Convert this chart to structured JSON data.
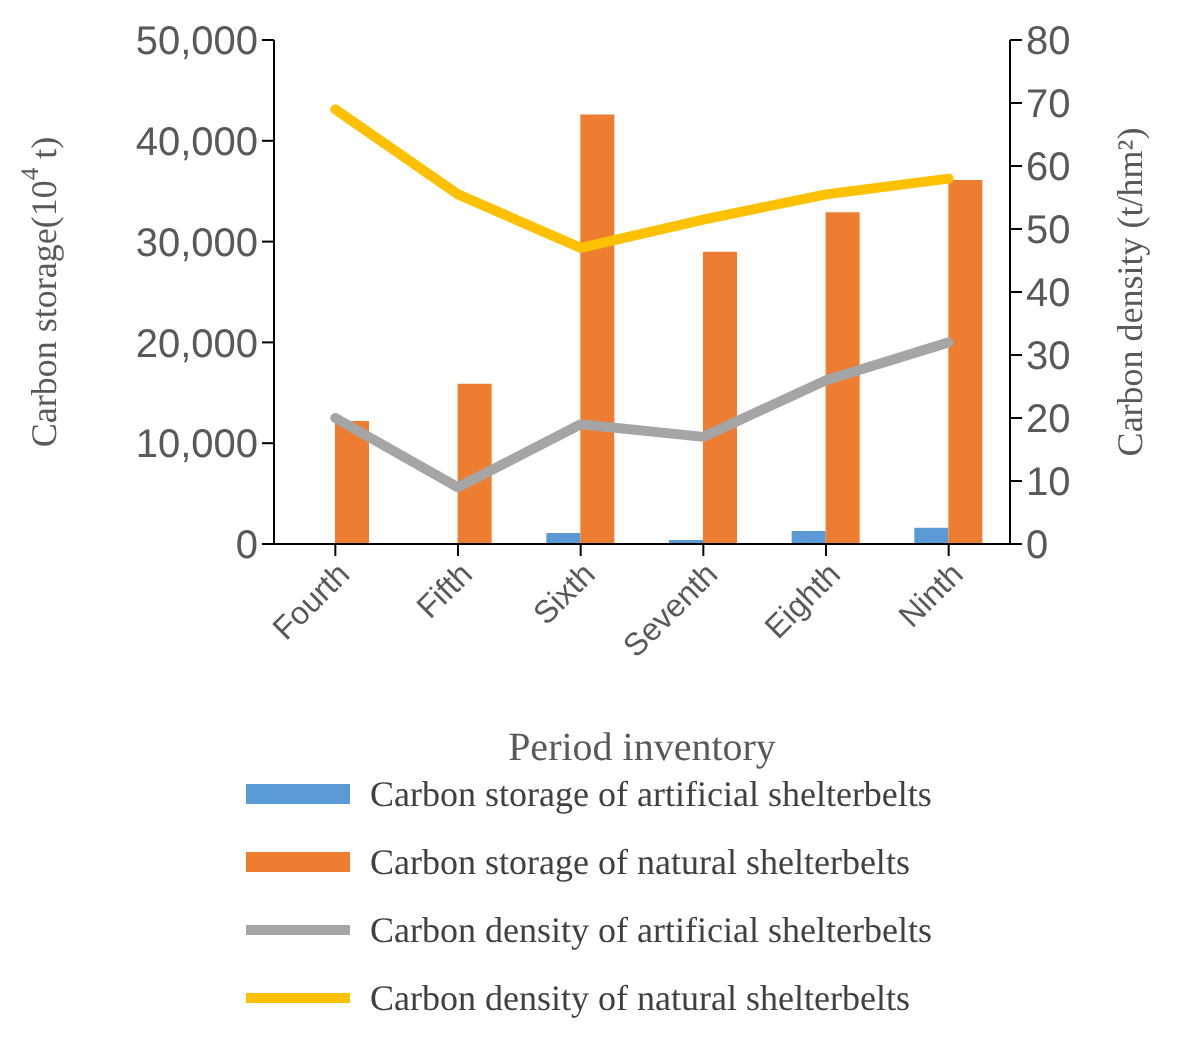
{
  "chart_data": {
    "type": "bar",
    "categories": [
      "Fourth",
      "Fifth",
      "Sixth",
      "Seventh",
      "Eighth",
      "Ninth"
    ],
    "xlabel": "Period inventory",
    "ylabel": "Carbon storage(10$^{4}$ t)",
    "y2label": "Carbon density (t/hm²)",
    "ylim": [
      0,
      50000
    ],
    "yticks": [
      {
        "value": 0,
        "label": "0"
      },
      {
        "value": 10000,
        "label": "10,000"
      },
      {
        "value": 20000,
        "label": "20,000"
      },
      {
        "value": 30000,
        "label": "30,000"
      },
      {
        "value": 40000,
        "label": "40,000"
      },
      {
        "value": 50000,
        "label": "50,000"
      }
    ],
    "y2lim": [
      0,
      80
    ],
    "y2ticks": [
      0,
      10,
      20,
      30,
      40,
      50,
      60,
      70,
      80
    ],
    "series": [
      {
        "name": "Carbon storage of artificial shelterbelts",
        "color": "#5b9bd5",
        "values": [
          0,
          null,
          1100,
          400,
          1300,
          1600
        ]
      },
      {
        "name": "Carbon storage of natural shelterbelts",
        "color": "#ed7d31",
        "values": [
          12200,
          15900,
          42600,
          29000,
          32900,
          36100
        ]
      },
      {
        "name": "Carbon density of artificial shelterbelts",
        "type": "line",
        "axis": "y2",
        "color": "#a5a5a5",
        "values": [
          20,
          9,
          19,
          17,
          26,
          32
        ]
      },
      {
        "name": "Carbon density of natural shelterbelts",
        "type": "line",
        "axis": "y2",
        "color": "#ffc000",
        "values": [
          69,
          55.5,
          47,
          51.5,
          55.5,
          58
        ]
      }
    ],
    "legend": "bottom",
    "grid": false,
    "marker": "none"
  }
}
